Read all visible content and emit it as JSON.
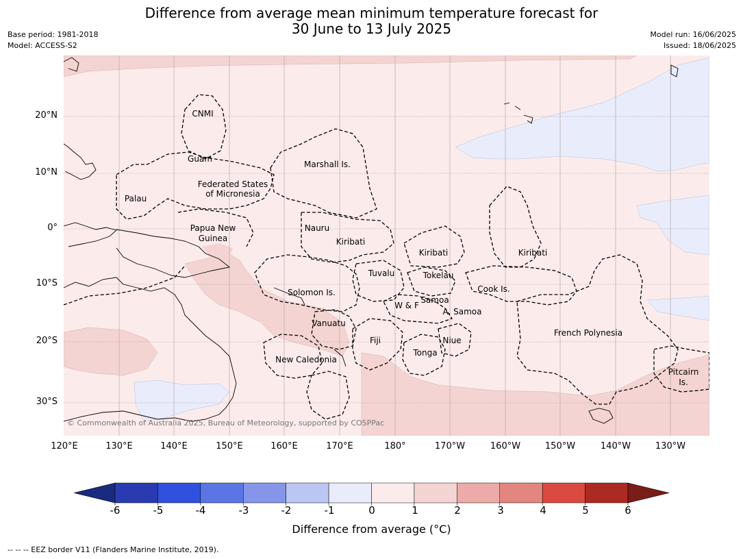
{
  "title_line1": "Difference from average mean minimum temperature forecast for",
  "title_line2": "30 June to 13 July 2025",
  "meta_left": [
    "Base period: 1981-2018",
    "Model: ACCESS-S2"
  ],
  "meta_right": [
    "Model run: 16/06/2025",
    "Issued: 18/06/2025"
  ],
  "lat_labels": [
    "20°N",
    "10°N",
    "0°",
    "10°S",
    "20°S",
    "30°S"
  ],
  "lon_labels": [
    "120°E",
    "130°E",
    "140°E",
    "150°E",
    "160°E",
    "170°E",
    "180°",
    "170°W",
    "160°W",
    "150°W",
    "140°W",
    "130°W"
  ],
  "regions": {
    "cnmi": "CNMI",
    "guam": "Guam",
    "marshall": "Marshall Is.",
    "fsm1": "Federated States",
    "fsm2": "of Micronesia",
    "palau": "Palau",
    "png1": "Papua New",
    "png2": "Guinea",
    "nauru": "Nauru",
    "kiribati_w": "Kiribati",
    "kiribati_c": "Kiribati",
    "kiribati_e": "Kiribati",
    "tuvalu": "Tuvalu",
    "tokelau": "Tokelau",
    "cook": "Cook Is.",
    "solomon": "Solomon Is.",
    "wf": "W & F",
    "samoa": "Samoa",
    "asamoa": "A. Samoa",
    "vanuatu": "Vanuatu",
    "fiji": "Fiji",
    "niue": "Niue",
    "tonga": "Tonga",
    "frenchpoly": "French Polynesia",
    "newcal": "New Caledonia",
    "pitcairn1": "Pitcairn",
    "pitcairn2": "Is."
  },
  "copyright": "© Commonwealth of Australia 2025, Bureau of Meteorology, supported by COSPPac",
  "colorbar": {
    "ticks": [
      "-6",
      "-5",
      "-4",
      "-3",
      "-2",
      "-1",
      "0",
      "1",
      "2",
      "3",
      "4",
      "5",
      "6"
    ],
    "colors": [
      "#2a3ab0",
      "#3050e0",
      "#5a75e4",
      "#8596ea",
      "#bcc6f3",
      "#e8ecfb",
      "#fbeceb",
      "#f4d4d2",
      "#ecaba8",
      "#e48680",
      "#da4a40",
      "#ad2a22"
    ],
    "under_color": "#1a2a80",
    "over_color": "#7a1c18",
    "label": "Difference from average (°C)"
  },
  "footer": "--  --  -- EEZ border V11 (Flanders Marine Institute, 2019)."
}
